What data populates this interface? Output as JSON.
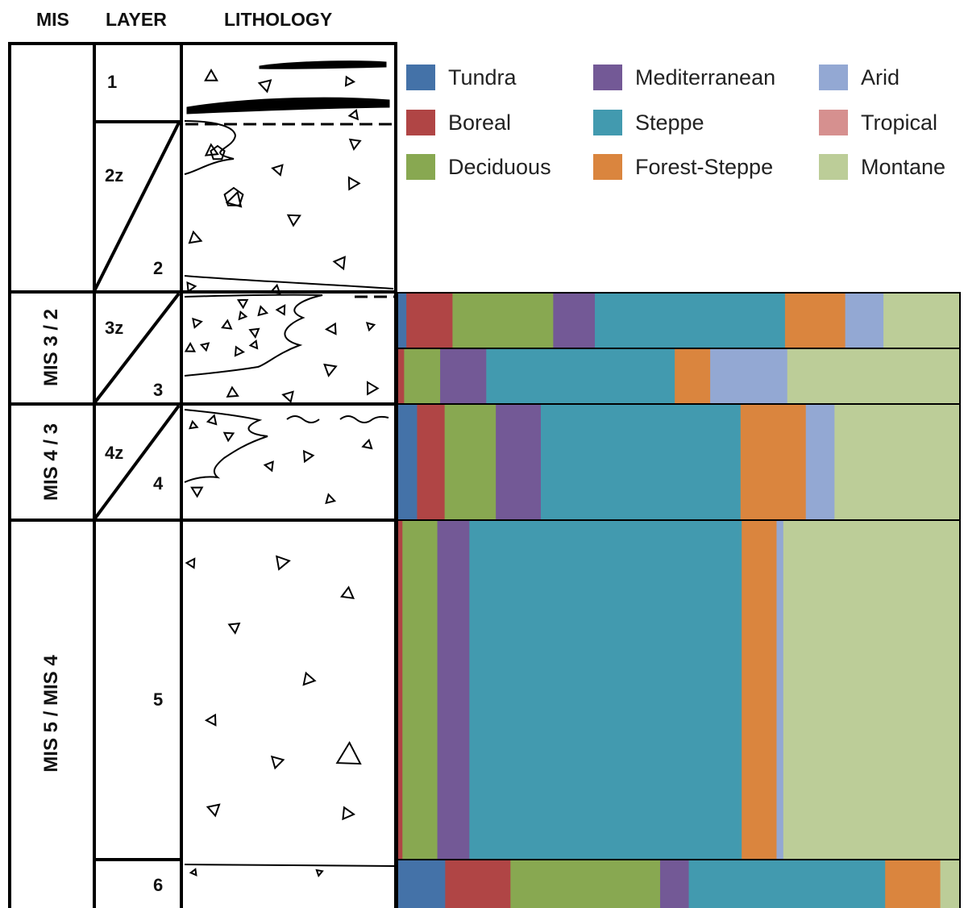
{
  "headers": {
    "mis": "MIS",
    "layer": "LAYER",
    "lithology": "LITHOLOGY"
  },
  "mis_labels": [
    "MIS 3 / 2",
    "MIS 4 / 3",
    "MIS 5 / MIS 4"
  ],
  "layer_labels": [
    "1",
    "2z",
    "2",
    "3z",
    "3",
    "4z",
    "4",
    "5",
    "6"
  ],
  "colors": {
    "Tundra": "#4472a8",
    "Boreal": "#b04545",
    "Deciduous": "#88a851",
    "Mediterranean": "#735996",
    "Steppe": "#429aaf",
    "Forest-Steppe": "#da853e",
    "Arid": "#93a8d3",
    "Tropical": "#d6908f",
    "Montane": "#bccd98"
  },
  "chart_data": {
    "type": "bar",
    "orientation": "horizontal-stacked",
    "unit": "proportion (%)",
    "legend": [
      "Tundra",
      "Boreal",
      "Mediterranean",
      "Steppe",
      "Arid",
      "Tropical",
      "Deciduous",
      "Forest-Steppe",
      "Montane"
    ],
    "categories": [
      "3z",
      "3",
      "4z / 4",
      "5",
      "6"
    ],
    "series": [
      {
        "name": "Tundra",
        "values": [
          1.6,
          0,
          3.5,
          0,
          8.5
        ]
      },
      {
        "name": "Boreal",
        "values": [
          8.2,
          1.2,
          4.9,
          0.9,
          11.6
        ]
      },
      {
        "name": "Deciduous",
        "values": [
          17.9,
          6.4,
          9.1,
          6.2,
          26.6
        ]
      },
      {
        "name": "Mediterranean",
        "values": [
          7.4,
          8.2,
          8.0,
          5.7,
          5.1
        ]
      },
      {
        "name": "Steppe",
        "values": [
          33.8,
          33.5,
          35.5,
          48.4,
          34.9
        ]
      },
      {
        "name": "Forest-Steppe",
        "values": [
          10.7,
          6.3,
          11.6,
          6.2,
          9.8
        ]
      },
      {
        "name": "Arid",
        "values": [
          6.8,
          13.7,
          5.1,
          1.2,
          0
        ]
      },
      {
        "name": "Tropical",
        "values": [
          0,
          0,
          0,
          0,
          0
        ]
      },
      {
        "name": "Montane",
        "values": [
          13.6,
          30.7,
          22.3,
          31.4,
          3.5
        ]
      }
    ]
  }
}
